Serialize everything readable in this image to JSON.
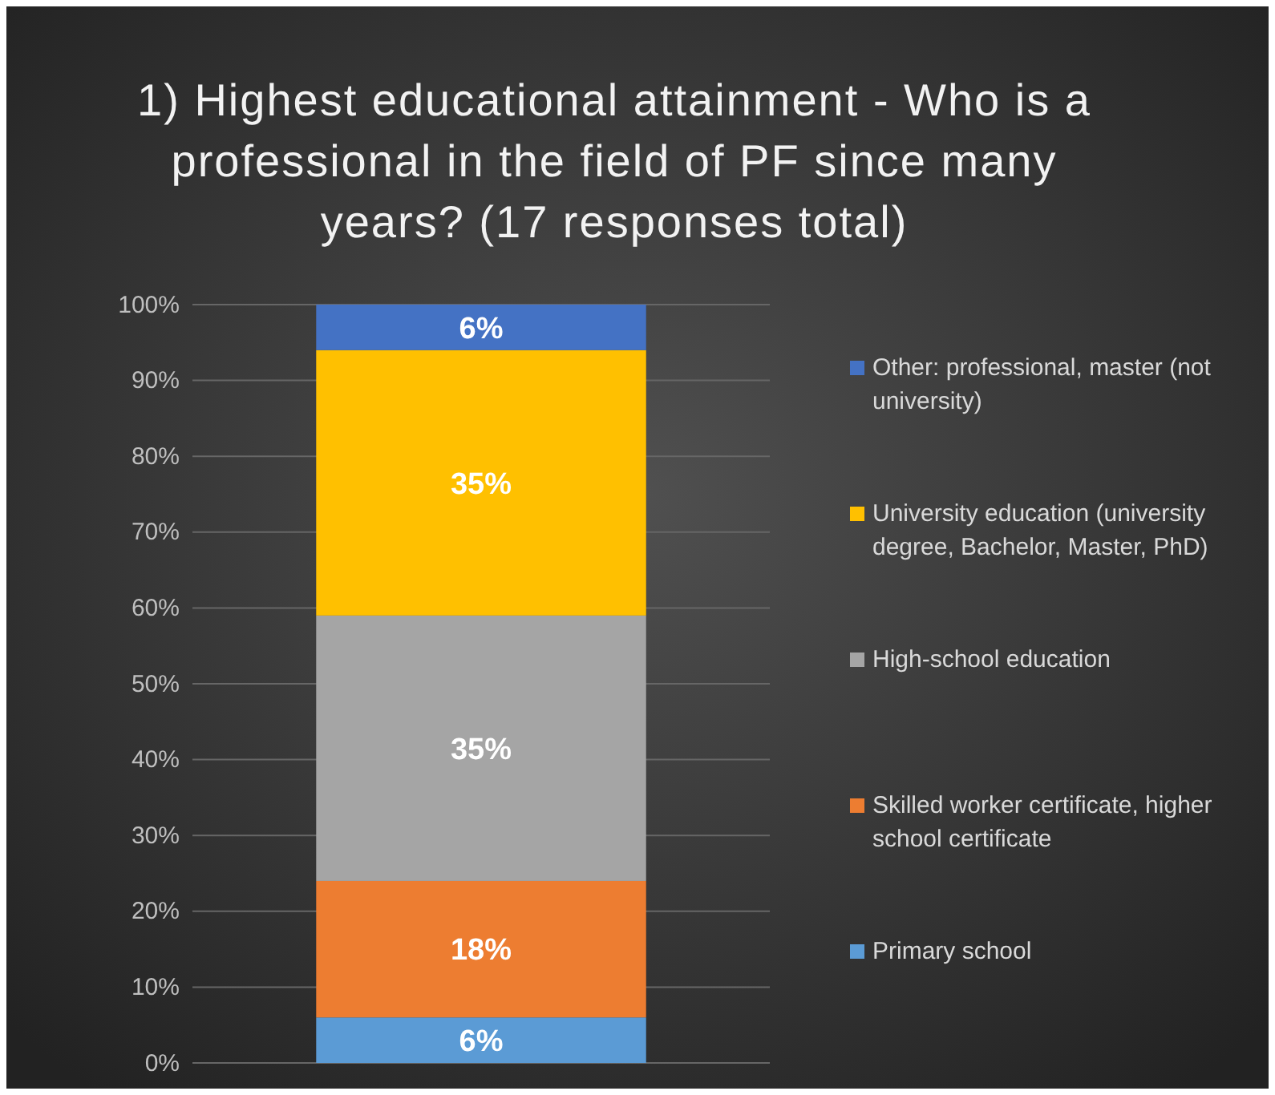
{
  "chart_data": {
    "type": "bar",
    "title": "1) Highest educational attainment -  Who is a professional in the field of PF since many years? (17 responses total)",
    "categories": [
      null
    ],
    "stacked": true,
    "series": [
      {
        "name": "Primary school",
        "color": "#5b9bd5",
        "values": [
          6
        ],
        "value_labels": [
          "6%"
        ]
      },
      {
        "name": "Skilled worker certificate, higher school certificate",
        "color": "#ed7d31",
        "values": [
          18
        ],
        "value_labels": [
          "18%"
        ]
      },
      {
        "name": "High-school education",
        "color": "#a5a5a5",
        "values": [
          35
        ],
        "value_labels": [
          "35%"
        ]
      },
      {
        "name": "University education (university degree, Bachelor, Master, PhD)",
        "color": "#ffc000",
        "values": [
          35
        ],
        "value_labels": [
          "35%"
        ]
      },
      {
        "name": "Other: professional, master (not university)",
        "color": "#4472c4",
        "values": [
          6
        ],
        "value_labels": [
          "6%"
        ]
      }
    ],
    "ylim": [
      0,
      100
    ],
    "yticks": [
      {
        "value": 0,
        "label": "0%"
      },
      {
        "value": 10,
        "label": "10%"
      },
      {
        "value": 20,
        "label": "20%"
      },
      {
        "value": 30,
        "label": "30%"
      },
      {
        "value": 40,
        "label": "40%"
      },
      {
        "value": 50,
        "label": "50%"
      },
      {
        "value": 60,
        "label": "60%"
      },
      {
        "value": 70,
        "label": "70%"
      },
      {
        "value": 80,
        "label": "80%"
      },
      {
        "value": 90,
        "label": "90%"
      },
      {
        "value": 100,
        "label": "100%"
      }
    ],
    "grid": "y",
    "legend": "right",
    "tick_labels": "y"
  }
}
